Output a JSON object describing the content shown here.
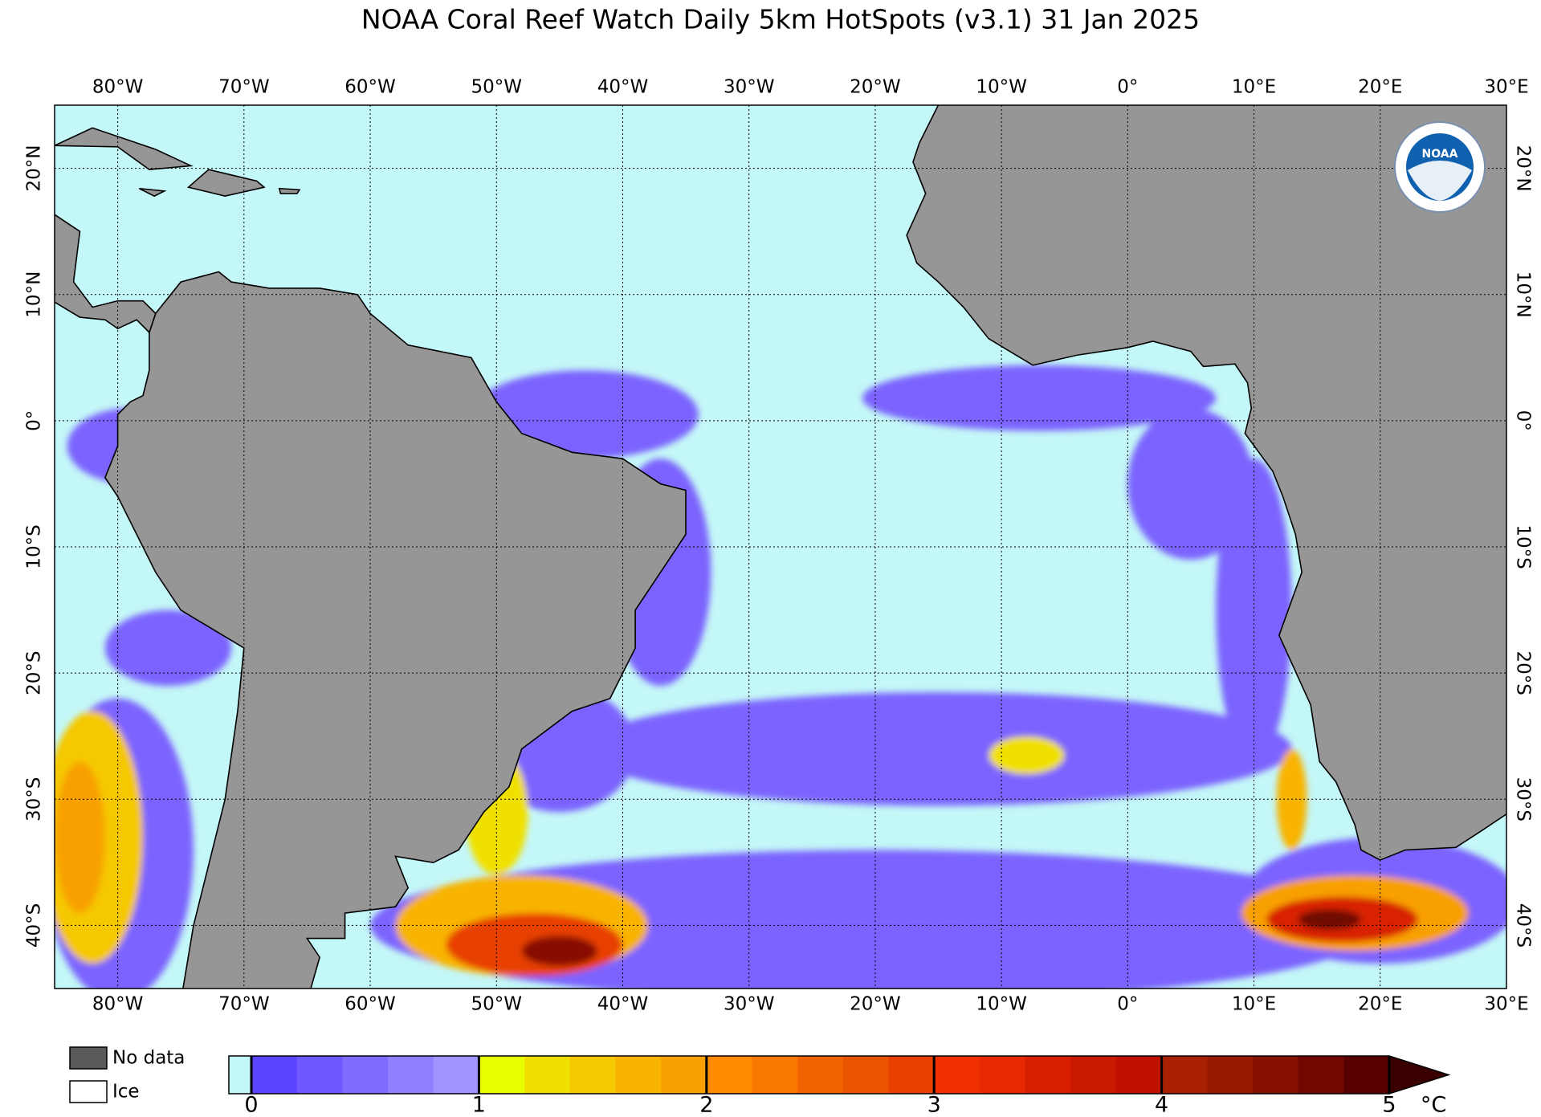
{
  "title": "NOAA Coral Reef Watch Daily 5km HotSpots  (v3.1)   31 Jan 2025",
  "map": {
    "xlim": [
      -85,
      30
    ],
    "ylim": [
      -45,
      25
    ],
    "grid": true,
    "xticks": [
      {
        "value": -80,
        "label": "80°W"
      },
      {
        "value": -70,
        "label": "70°W"
      },
      {
        "value": -60,
        "label": "60°W"
      },
      {
        "value": -50,
        "label": "50°W"
      },
      {
        "value": -40,
        "label": "40°W"
      },
      {
        "value": -30,
        "label": "30°W"
      },
      {
        "value": -20,
        "label": "20°W"
      },
      {
        "value": -10,
        "label": "10°W"
      },
      {
        "value": 0,
        "label": "0°"
      },
      {
        "value": 10,
        "label": "10°E"
      },
      {
        "value": 20,
        "label": "20°E"
      },
      {
        "value": 30,
        "label": "30°E"
      }
    ],
    "yticks": [
      {
        "value": 20,
        "label": "20°N"
      },
      {
        "value": 10,
        "label": "10°N"
      },
      {
        "value": 0,
        "label": "0°"
      },
      {
        "value": -10,
        "label": "10°S"
      },
      {
        "value": -20,
        "label": "20°S"
      },
      {
        "value": -30,
        "label": "30°S"
      },
      {
        "value": -40,
        "label": "40°S"
      }
    ]
  },
  "logo": {
    "text": "NOAA"
  },
  "legend": [
    {
      "label": "No data",
      "color": "#5a5a5a"
    },
    {
      "label": "Ice",
      "color": "#ffffff"
    }
  ],
  "colorbar": {
    "range": [
      0,
      5
    ],
    "ticks": [
      0,
      1,
      2,
      3,
      4,
      5
    ],
    "unit": "°C",
    "below_color": "#c4f7f7",
    "above_color": "#3a0000",
    "colors": [
      "#5a44ff",
      "#6e58ff",
      "#7f6cff",
      "#9080ff",
      "#a294ff",
      "#e8ff00",
      "#f0e000",
      "#f5c800",
      "#f8b400",
      "#f8a000",
      "#ff8a00",
      "#f87800",
      "#f06400",
      "#ea5400",
      "#e84000",
      "#f03000",
      "#e82800",
      "#d82000",
      "#c81800",
      "#c01000",
      "#a82000",
      "#981800",
      "#881000",
      "#700800",
      "#580000"
    ]
  }
}
